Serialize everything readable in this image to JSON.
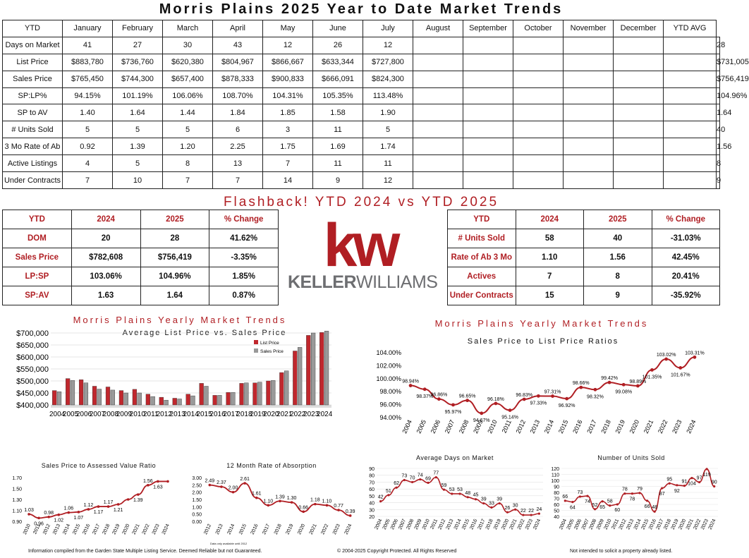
{
  "title": "Morris Plains 2025 Year to Date Market Trends",
  "ytd_table": {
    "headers": [
      "YTD",
      "January",
      "February",
      "March",
      "April",
      "May",
      "June",
      "July",
      "August",
      "September",
      "October",
      "November",
      "December",
      "YTD AVG"
    ],
    "rows": [
      {
        "label": "Days on Market",
        "values": [
          "41",
          "27",
          "30",
          "43",
          "12",
          "26",
          "12",
          "",
          "",
          "",
          "",
          "",
          ""
        ],
        "avg": "28"
      },
      {
        "label": "List Price",
        "values": [
          "$883,780",
          "$736,760",
          "$620,380",
          "$804,967",
          "$866,667",
          "$633,344",
          "$727,800",
          "",
          "",
          "",
          "",
          "",
          ""
        ],
        "avg": "$731,005"
      },
      {
        "label": "Sales Price",
        "values": [
          "$765,450",
          "$744,300",
          "$657,400",
          "$878,333",
          "$900,833",
          "$666,091",
          "$824,300",
          "",
          "",
          "",
          "",
          "",
          ""
        ],
        "avg": "$756,419"
      },
      {
        "label": "SP:LP%",
        "values": [
          "94.15%",
          "101.19%",
          "106.06%",
          "108.70%",
          "104.31%",
          "105.35%",
          "113.48%",
          "",
          "",
          "",
          "",
          "",
          ""
        ],
        "avg": "104.96%"
      },
      {
        "label": "SP to AV",
        "values": [
          "1.40",
          "1.64",
          "1.44",
          "1.84",
          "1.85",
          "1.58",
          "1.90",
          "",
          "",
          "",
          "",
          "",
          ""
        ],
        "avg": "1.64"
      },
      {
        "label": "# Units Sold",
        "values": [
          "5",
          "5",
          "5",
          "6",
          "3",
          "11",
          "5",
          "",
          "",
          "",
          "",
          "",
          ""
        ],
        "avg": "40"
      },
      {
        "label": "3 Mo Rate of Ab",
        "values": [
          "0.92",
          "1.39",
          "1.20",
          "2.25",
          "1.75",
          "1.69",
          "1.74",
          "",
          "",
          "",
          "",
          "",
          ""
        ],
        "avg": "1.56"
      },
      {
        "label": "Active Listings",
        "values": [
          "4",
          "5",
          "8",
          "13",
          "7",
          "11",
          "11",
          "",
          "",
          "",
          "",
          "",
          ""
        ],
        "avg": "8"
      },
      {
        "label": "Under Contracts",
        "values": [
          "7",
          "10",
          "7",
          "7",
          "14",
          "9",
          "12",
          "",
          "",
          "",
          "",
          "",
          ""
        ],
        "avg": "9"
      }
    ]
  },
  "flashback_title": "Flashback!  YTD 2024 vs YTD 2025",
  "flash_left": {
    "headers": [
      "YTD",
      "2024",
      "2025",
      "% Change"
    ],
    "rows": [
      [
        "DOM",
        "20",
        "28",
        "41.62%"
      ],
      [
        "Sales Price",
        "$782,608",
        "$756,419",
        "-3.35%"
      ],
      [
        "LP:SP",
        "103.06%",
        "104.96%",
        "1.85%"
      ],
      [
        "SP:AV",
        "1.63",
        "1.64",
        "0.87%"
      ]
    ]
  },
  "flash_right": {
    "headers": [
      "YTD",
      "2024",
      "2025",
      "% Change"
    ],
    "rows": [
      [
        "# Units Sold",
        "58",
        "40",
        "-31.03%"
      ],
      [
        "Rate of Ab 3 Mo",
        "1.10",
        "1.56",
        "42.45%"
      ],
      [
        "Actives",
        "7",
        "8",
        "20.41%"
      ],
      [
        "Under Contracts",
        "15",
        "9",
        "-35.92%"
      ]
    ]
  },
  "logo": {
    "mark": "kw",
    "word1": "KELLER",
    "word2": "WILLIAMS",
    "colors": {
      "red": "#b01e23",
      "gray": "#6d6e71"
    }
  },
  "section_titles": {
    "left": "Morris Plains Yearly Market Trends",
    "right": "Morris Plains Yearly Market Trends"
  },
  "footer": {
    "left": "Information compiled from the Garden State Multiple Listing Service.  Deemed Reliable but not Guaranteed.",
    "center": "© 2004-2025 Copyright Protected.  All Rights Reserved",
    "right": "Not intended to solicit a property already listed.",
    "note": "Data only available until 2012"
  },
  "chart_data": [
    {
      "id": "list-vs-sales",
      "type": "bar",
      "title": "Average List Price vs. Sales Price",
      "categories": [
        "2004",
        "2005",
        "2006",
        "2007",
        "2008",
        "2009",
        "2010",
        "2011",
        "2012",
        "2013",
        "2014",
        "2015",
        "2016",
        "2017",
        "2018",
        "2019",
        "2020",
        "2021",
        "2022",
        "2023",
        "2024"
      ],
      "series": [
        {
          "name": "List Price",
          "color": "#c0272d",
          "values": [
            460000,
            510000,
            505000,
            478000,
            475000,
            460000,
            465000,
            445000,
            432000,
            428000,
            445000,
            490000,
            440000,
            452000,
            490000,
            492000,
            500000,
            535000,
            625000,
            690000,
            702000
          ]
        },
        {
          "name": "Sales Price",
          "color": "#999999",
          "values": [
            455000,
            502000,
            492000,
            466000,
            462000,
            450000,
            450000,
            435000,
            420000,
            425000,
            438000,
            478000,
            440000,
            452000,
            492000,
            495000,
            502000,
            542000,
            640000,
            700000,
            708000
          ]
        }
      ],
      "yticks": [
        "$400,000",
        "$450,000",
        "$500,000",
        "$550,000",
        "$600,000",
        "$650,000",
        "$700,000"
      ],
      "ylim": [
        400000,
        700000
      ]
    },
    {
      "id": "sp-lp-ratio",
      "type": "line",
      "title": "Sales Price to List Price Ratios",
      "x": [
        "2004",
        "2005",
        "2006",
        "2007",
        "2008",
        "2009",
        "2010",
        "2011",
        "2012",
        "2013",
        "2014",
        "2015",
        "2016",
        "2017",
        "2018",
        "2019",
        "2020",
        "2021",
        "2022",
        "2023",
        "2024"
      ],
      "values": [
        98.94,
        98.37,
        96.86,
        95.97,
        96.65,
        94.67,
        96.18,
        95.14,
        96.83,
        97.33,
        97.31,
        96.92,
        98.66,
        98.32,
        99.42,
        99.08,
        98.89,
        101.35,
        103.02,
        101.67,
        103.31
      ],
      "labels": [
        "98.94%",
        "98.37%",
        "96.86%",
        "95.97%",
        "96.65%",
        "94.67%",
        "96.18%",
        "95.14%",
        "96.83%",
        "97.33%",
        "97.31%",
        "96.92%",
        "98.66%",
        "98.32%",
        "99.42%",
        "99.08%",
        "98.89%",
        "101.35%",
        "103.02%",
        "101.67%",
        "103.31%"
      ],
      "yticks": [
        "94.00%",
        "96.00%",
        "98.00%",
        "100.00%",
        "102.00%",
        "104.00%"
      ],
      "ylim": [
        94,
        104
      ]
    },
    {
      "id": "sp-av-ratio",
      "type": "line",
      "title": "Sales Price to Assessed Value Ratio",
      "x": [
        "2010",
        "2011",
        "2012",
        "2013",
        "2014",
        "2015",
        "2016",
        "2017",
        "2018",
        "2019",
        "2020",
        "2021",
        "2022",
        "2023",
        "2024"
      ],
      "values": [
        1.03,
        0.96,
        0.98,
        1.02,
        1.06,
        1.07,
        1.12,
        1.17,
        1.17,
        1.21,
        1.3,
        1.39,
        1.56,
        1.63,
        1.63
      ],
      "labels": [
        "1.03",
        "0.96",
        "0.98",
        "1.02",
        "1.06",
        "1.07",
        "1.12",
        "1.17",
        "1.17",
        "1.21",
        "",
        "1.39",
        "1.56",
        "1.63",
        ""
      ],
      "yticks": [
        "0.90",
        "1.10",
        "1.30",
        "1.50",
        "1.70"
      ],
      "ylim": [
        0.9,
        1.7
      ]
    },
    {
      "id": "absorption",
      "type": "line",
      "title": "12 Month Rate of Absorption",
      "x": [
        "2012",
        "2013",
        "2014",
        "2015",
        "2016",
        "2017",
        "2018",
        "2019",
        "2020",
        "2021",
        "2022",
        "2023",
        "2024"
      ],
      "values": [
        2.49,
        2.37,
        2.0,
        2.61,
        1.61,
        1.1,
        1.39,
        1.3,
        0.66,
        1.18,
        1.1,
        0.77,
        0.39
      ],
      "labels": [
        "2.49",
        "2.37",
        "2.00",
        "2.61",
        "1.61",
        "1.10",
        "1.39",
        "1.30",
        "0.66",
        "1.18",
        "1.10",
        "0.77",
        "0.39"
      ],
      "yticks": [
        "0.00",
        "0.50",
        "1.00",
        "1.50",
        "2.00",
        "2.50",
        "3.00"
      ],
      "ylim": [
        0,
        3
      ]
    },
    {
      "id": "days-on-market",
      "type": "line",
      "title": "Average Days on Market",
      "x": [
        "2004",
        "2005",
        "2006",
        "2007",
        "2008",
        "2009",
        "2010",
        "2011",
        "2012",
        "2013",
        "2014",
        "2015",
        "2016",
        "2017",
        "2018",
        "2019",
        "2020",
        "2021",
        "2022",
        "2023",
        "2024"
      ],
      "values": [
        42,
        51,
        62,
        73,
        70,
        74,
        69,
        77,
        59,
        53,
        53,
        48,
        45,
        39,
        33,
        39,
        26,
        30,
        22,
        22,
        24
      ],
      "labels": [
        "42",
        "51",
        "62",
        "73",
        "70",
        "74",
        "69",
        "77",
        "59",
        "53",
        "53",
        "48",
        "45",
        "39",
        "33",
        "39",
        "26",
        "30",
        "22",
        "22",
        "24"
      ],
      "yticks": [
        "20",
        "30",
        "40",
        "50",
        "60",
        "70",
        "80",
        "90"
      ],
      "ylim": [
        20,
        90
      ]
    },
    {
      "id": "units-sold",
      "type": "line",
      "title": "Number of Units Sold",
      "x": [
        "2004",
        "2005",
        "2006",
        "2007",
        "2008",
        "2009",
        "2010",
        "2011",
        "2012",
        "2013",
        "2014",
        "2015",
        "2016",
        "2017",
        "2018",
        "2019",
        "2020",
        "2021",
        "2022",
        "2023",
        "2024"
      ],
      "values": [
        66,
        64,
        73,
        74,
        52,
        65,
        58,
        60,
        78,
        78,
        79,
        66,
        48,
        87,
        95,
        92,
        91,
        104,
        97,
        119,
        90
      ],
      "labels": [
        "66",
        "64",
        "73",
        "74",
        "52",
        "65",
        "58",
        "60",
        "78",
        "78",
        "79",
        "66",
        "48",
        "87",
        "95",
        "92",
        "91",
        "104",
        "97",
        "119",
        "90"
      ],
      "yticks": [
        "40",
        "50",
        "60",
        "70",
        "80",
        "90",
        "100",
        "110",
        "120"
      ],
      "ylim": [
        40,
        120
      ]
    }
  ]
}
